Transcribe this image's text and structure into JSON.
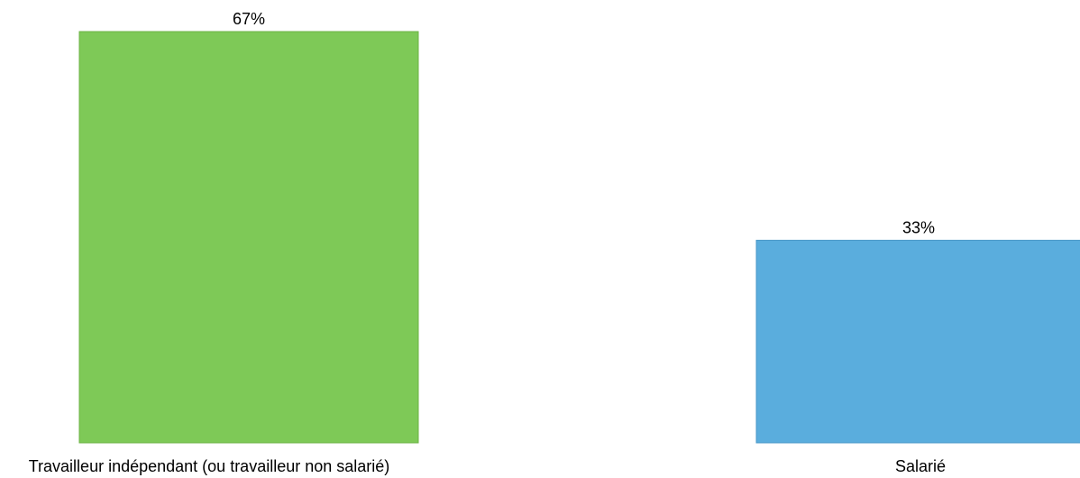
{
  "chart_data": {
    "type": "bar",
    "categories": [
      "Travailleur indépendant (ou travailleur non salarié)",
      "Salarié"
    ],
    "values": [
      67,
      33
    ],
    "data_labels": [
      "67%",
      "33%"
    ],
    "colors": [
      "#7ec957",
      "#5aaddd"
    ],
    "border_colors": [
      "#6cb346",
      "#4a98c8"
    ],
    "ylim": [
      0,
      67
    ],
    "grid": false,
    "legend": "none"
  }
}
